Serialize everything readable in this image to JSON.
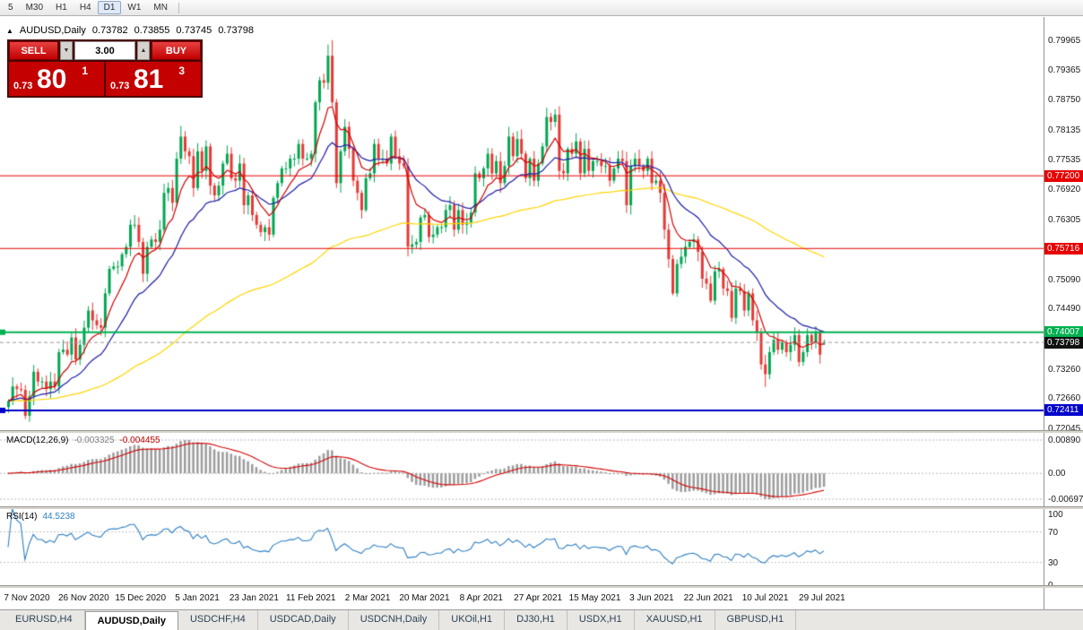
{
  "toolbar": {
    "timeframes": [
      {
        "label": "5",
        "active": false
      },
      {
        "label": "M30",
        "active": false
      },
      {
        "label": "H1",
        "active": false
      },
      {
        "label": "H4",
        "active": false
      },
      {
        "label": "D1",
        "active": true
      },
      {
        "label": "W1",
        "active": false
      },
      {
        "label": "MN",
        "active": false
      }
    ]
  },
  "chart_header": {
    "symbol_title": "AUDUSD,Daily",
    "open": "0.73782",
    "high": "0.73855",
    "low": "0.73745",
    "close": "0.73798"
  },
  "trade_panel": {
    "sell_label": "SELL",
    "buy_label": "BUY",
    "volume": "3.00",
    "spin_down": "▼",
    "spin_up": "▲",
    "sell_price_prefix": "0.73",
    "sell_price_big": "80",
    "sell_price_sup": "1",
    "buy_price_prefix": "0.73",
    "buy_price_big": "81",
    "buy_price_sup": "3"
  },
  "price_axis_labels": [
    "0.79965",
    "0.79365",
    "0.78750",
    "0.78135",
    "0.77535",
    "0.76920",
    "0.76305",
    "0.75705",
    "0.75090",
    "0.74490",
    "0.73875",
    "0.73260",
    "0.72660",
    "0.72045"
  ],
  "price_levels": [
    {
      "label": "0.77200",
      "price": 0.772,
      "color": "#e60000",
      "line_width": 1
    },
    {
      "label": "0.75716",
      "price": 0.75716,
      "color": "#e60000",
      "line_width": 1
    },
    {
      "label": "0.74007",
      "price": 0.74007,
      "color": "#00b050",
      "line_width": 2,
      "edge_mark": true
    },
    {
      "label": "0.73798",
      "price": 0.73798,
      "color": "#111111",
      "line_color": "#999999",
      "line_width": 1,
      "dashed": true,
      "role": "current-price"
    },
    {
      "label": "0.72411",
      "price": 0.72411,
      "color": "#0000cd",
      "line_width": 2,
      "edge_mark": true
    }
  ],
  "macd_panel": {
    "name": "MACD(12,26,9)",
    "main_value": "-0.003325",
    "signal_value": "-0.004455",
    "axis_labels": [
      "0.00890",
      "0.00",
      "-0.00697"
    ]
  },
  "rsi_panel": {
    "name": "RSI(14)",
    "value": "44.5238",
    "axis_labels": [
      "100",
      "70",
      "30",
      "0"
    ],
    "levels": [
      70,
      30
    ]
  },
  "date_axis": [
    "7 Nov 2020",
    "26 Nov 2020",
    "15 Dec 2020",
    "5 Jan 2021",
    "23 Jan 2021",
    "11 Feb 2021",
    "2 Mar 2021",
    "20 Mar 2021",
    "8 Apr 2021",
    "27 Apr 2021",
    "15 May 2021",
    "3 Jun 2021",
    "22 Jun 2021",
    "10 Jul 2021",
    "29 Jul 2021"
  ],
  "tabs": [
    {
      "label": "EURUSD,H4",
      "active": false
    },
    {
      "label": "AUDUSD,Daily",
      "active": true
    },
    {
      "label": "USDCHF,H4",
      "active": false
    },
    {
      "label": "USDCAD,Daily",
      "active": false
    },
    {
      "label": "USDCNH,Daily",
      "active": false
    },
    {
      "label": "UKOil,H1",
      "active": false
    },
    {
      "label": "DJ30,H1",
      "active": false
    },
    {
      "label": "USDX,H1",
      "active": false
    },
    {
      "label": "XAUUSD,H1",
      "active": false
    },
    {
      "label": "GBPUSD,H1",
      "active": false
    }
  ],
  "chart_data": {
    "type": "candlestick",
    "symbol": "AUDUSD",
    "timeframe": "Daily",
    "title": "AUDUSD,Daily",
    "last_bar": {
      "open": 0.73782,
      "high": 0.73855,
      "low": 0.73745,
      "close": 0.73798
    },
    "y_axis_range": [
      0.72045,
      0.79965
    ],
    "x_range_labels": [
      "7 Nov 2020",
      "29 Jul 2021"
    ],
    "closes": [
      0.726,
      0.729,
      0.7285,
      0.7283,
      0.723,
      0.727,
      0.732,
      0.73,
      0.73,
      0.7285,
      0.73,
      0.729,
      0.736,
      0.7365,
      0.7355,
      0.739,
      0.7345,
      0.7375,
      0.741,
      0.7445,
      0.7425,
      0.7415,
      0.741,
      0.748,
      0.753,
      0.7535,
      0.7535,
      0.756,
      0.7575,
      0.762,
      0.762,
      0.7585,
      0.752,
      0.7575,
      0.759,
      0.7585,
      0.761,
      0.7685,
      0.7695,
      0.7665,
      0.7755,
      0.78,
      0.777,
      0.776,
      0.7695,
      0.777,
      0.773,
      0.778,
      0.77,
      0.768,
      0.77,
      0.7745,
      0.7765,
      0.7715,
      0.771,
      0.7745,
      0.766,
      0.768,
      0.764,
      0.762,
      0.7605,
      0.7615,
      0.76,
      0.7675,
      0.7705,
      0.7735,
      0.7735,
      0.7755,
      0.7755,
      0.7785,
      0.7755,
      0.7755,
      0.7765,
      0.787,
      0.7915,
      0.791,
      0.7965,
      0.787,
      0.7705,
      0.777,
      0.782,
      0.7775,
      0.771,
      0.7685,
      0.765,
      0.7715,
      0.7725,
      0.7785,
      0.7755,
      0.7755,
      0.7745,
      0.78,
      0.776,
      0.7745,
      0.774,
      0.7575,
      0.758,
      0.7585,
      0.7635,
      0.764,
      0.7595,
      0.76,
      0.7615,
      0.7615,
      0.765,
      0.766,
      0.761,
      0.765,
      0.762,
      0.7625,
      0.7645,
      0.7725,
      0.7715,
      0.7735,
      0.7765,
      0.7725,
      0.775,
      0.7705,
      0.774,
      0.78,
      0.776,
      0.7795,
      0.7765,
      0.7715,
      0.7755,
      0.771,
      0.7745,
      0.778,
      0.784,
      0.783,
      0.7845,
      0.773,
      0.7725,
      0.7775,
      0.7765,
      0.779,
      0.7725,
      0.7775,
      0.773,
      0.775,
      0.775,
      0.774,
      0.774,
      0.771,
      0.7735,
      0.7755,
      0.775,
      0.766,
      0.774,
      0.7755,
      0.774,
      0.773,
      0.7755,
      0.7705,
      0.771,
      0.7685,
      0.761,
      0.755,
      0.748,
      0.754,
      0.7555,
      0.7575,
      0.7585,
      0.759,
      0.7565,
      0.751,
      0.75,
      0.7465,
      0.7525,
      0.753,
      0.749,
      0.7485,
      0.743,
      0.749,
      0.7485,
      0.7445,
      0.748,
      0.7425,
      0.74,
      0.7335,
      0.7315,
      0.736,
      0.7385,
      0.7365,
      0.738,
      0.736,
      0.7375,
      0.7395,
      0.734,
      0.736,
      0.7395,
      0.738,
      0.74,
      0.7355,
      0.73798
    ],
    "overrides": [
      {
        "i": 41,
        "h": 0.7822
      },
      {
        "i": 76,
        "h": 0.7988
      },
      {
        "i": 77,
        "h": 0.7997
      },
      {
        "i": 158,
        "l": 0.7476
      },
      {
        "i": 180,
        "l": 0.7289
      },
      {
        "i": 194,
        "o": 0.73782,
        "h": 0.73855,
        "l": 0.73745
      }
    ],
    "indicators": {
      "moving_averages": [
        {
          "period": 100,
          "color": "#ffd400"
        },
        {
          "period": 21,
          "color": "#1a1aa6"
        },
        {
          "period": 8,
          "color": "#d40000"
        }
      ],
      "macd": {
        "fast": 12,
        "slow": 26,
        "signal": 9,
        "main": -0.003325,
        "signal_value": -0.004455
      },
      "rsi": {
        "period": 14,
        "value": 44.5238
      }
    },
    "colors": {
      "up": "#00a651",
      "down": "#e53935",
      "macd_hist": "#9c9c9c",
      "macd_signal": "#d40000",
      "rsi_line": "#2e7fc2"
    }
  }
}
